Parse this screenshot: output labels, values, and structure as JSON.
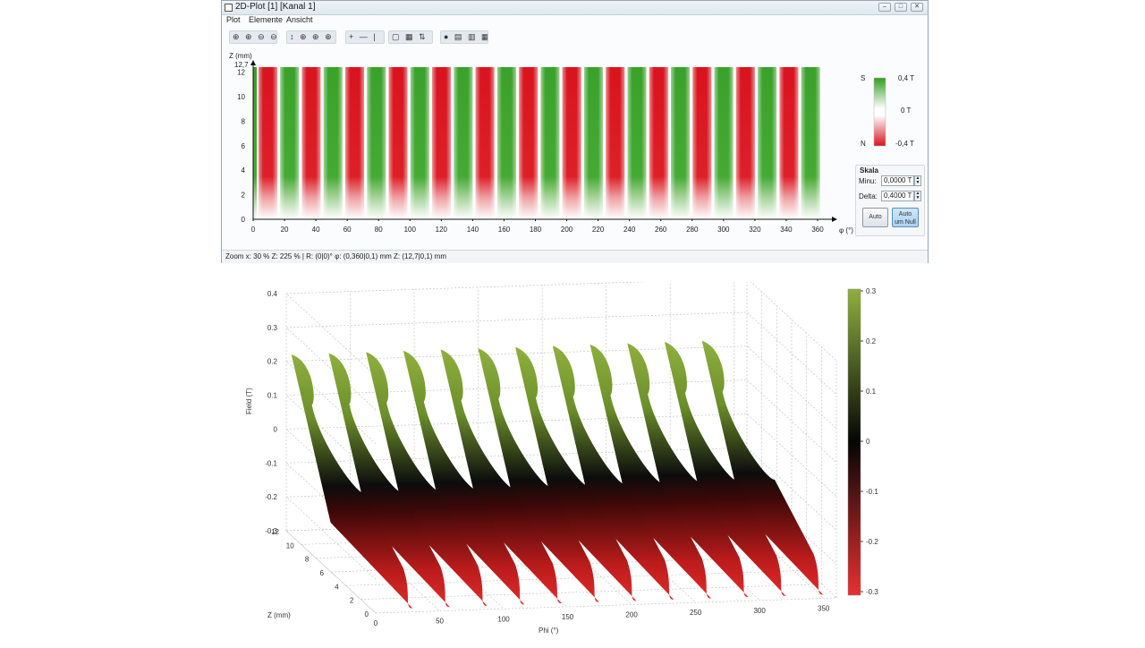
{
  "window": {
    "title": "2D-Plot [1] [Kanal 1]",
    "minimize": "–",
    "maximize": "□",
    "close": "✕"
  },
  "menu": [
    "Plot",
    "Elemente",
    "Ansicht"
  ],
  "toolbar": {
    "group1": "⊕ ⊕ ⊖ ⊖",
    "group2": "↕ ⊕ ⊕ ⊕",
    "group3": "+ — |",
    "group4": "▢ ▦ ⇅",
    "group5": "● ▤ ▥ ▦"
  },
  "plot2d": {
    "ylabel": "Z (mm)",
    "ytop": "12,7",
    "yticks": [
      "12",
      "10",
      "8",
      "6",
      "4",
      "2",
      "0"
    ],
    "xticks": [
      "0",
      "20",
      "40",
      "60",
      "80",
      "100",
      "120",
      "140",
      "160",
      "180",
      "200",
      "220",
      "240",
      "260",
      "280",
      "300",
      "320",
      "340",
      "360"
    ],
    "xlabel": "φ (°)"
  },
  "legend": {
    "top_pole": "S",
    "bottom_pole": "N",
    "max": "0,4 T",
    "mid": "0 T",
    "min": "-0,4 T"
  },
  "scale": {
    "title": "Skala",
    "min_label": "Minu:",
    "min_value": "0,0000 T",
    "delta_label": "Delta:",
    "delta_value": "0,4000 T",
    "auto_button": "Auto",
    "auto_null_button_line1": "Auto",
    "auto_null_button_line2": "um Null"
  },
  "status": "Zoom x: 30 % Z: 225 %  |  R: (0|0)°  φ: (0,360|0,1) mm Z: (12,7|0,1) mm",
  "colors": {
    "green": "#2f9e1f",
    "red": "#d8141e",
    "olive": "#8aa83a",
    "darkred": "#b01818"
  },
  "chart_data": {
    "type": "surface",
    "title": "",
    "xlabel": "Phi (°)",
    "ylabel": "Z (mm)",
    "zlabel": "Field (T)",
    "x_ticks": [
      "0",
      "50",
      "100",
      "150",
      "200",
      "250",
      "300",
      "350"
    ],
    "y_ticks": [
      "0",
      "2",
      "4",
      "6",
      "8",
      "10",
      "12"
    ],
    "z_ticks": [
      "0.4",
      "0.3",
      "0.2",
      "0.1",
      "0",
      "-0.1",
      "-0.2",
      "-0.3"
    ],
    "colorbar_ticks": [
      "0.3",
      "0.2",
      "0.1",
      "0",
      "-0.1",
      "-0.2",
      "-0.3"
    ],
    "xlim": [
      0,
      360
    ],
    "ylim": [
      0,
      12
    ],
    "zlim": [
      -0.3,
      0.4
    ],
    "pole_pairs": 13
  }
}
